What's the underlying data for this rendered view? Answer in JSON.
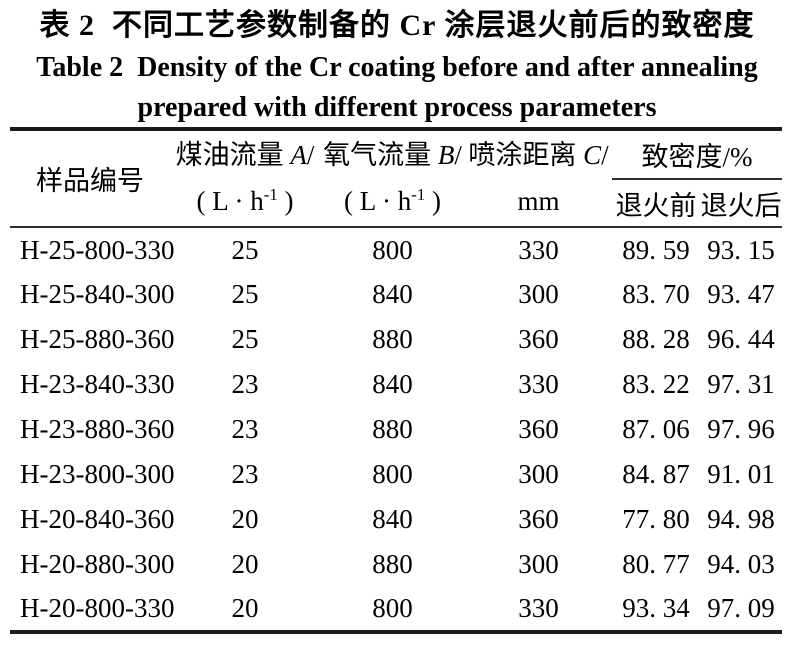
{
  "caption": {
    "zh": "表 2  不同工艺参数制备的 Cr 涂层退火前后的致密度",
    "en_line1": "Table 2  Density of the Cr coating before and after annealing",
    "en_line2": "prepared with different process parameters"
  },
  "table": {
    "header": {
      "sample_label": "样品编号",
      "kerosene": {
        "label": "煤油流量",
        "variable": "A",
        "slash": "/",
        "unit_pre": "( L · h",
        "unit_sup": "-1",
        "unit_post": " )"
      },
      "oxygen": {
        "label": "氧气流量",
        "variable": "B",
        "slash": "/",
        "unit_pre": "( L · h",
        "unit_sup": "-1",
        "unit_post": " )"
      },
      "distance": {
        "label": "喷涂距离",
        "variable": "C",
        "slash": "/",
        "unit": "mm"
      },
      "density_group_label": "致密度/%",
      "before_label": "退火前",
      "after_label": "退火后"
    },
    "rows": [
      {
        "sample": "H-25-800-330",
        "kerosene": "25",
        "oxygen": "800",
        "distance": "330",
        "before": "89. 59",
        "after": "93. 15"
      },
      {
        "sample": "H-25-840-300",
        "kerosene": "25",
        "oxygen": "840",
        "distance": "300",
        "before": "83. 70",
        "after": "93. 47"
      },
      {
        "sample": "H-25-880-360",
        "kerosene": "25",
        "oxygen": "880",
        "distance": "360",
        "before": "88. 28",
        "after": "96. 44"
      },
      {
        "sample": "H-23-840-330",
        "kerosene": "23",
        "oxygen": "840",
        "distance": "330",
        "before": "83. 22",
        "after": "97. 31"
      },
      {
        "sample": "H-23-880-360",
        "kerosene": "23",
        "oxygen": "880",
        "distance": "360",
        "before": "87. 06",
        "after": "97. 96"
      },
      {
        "sample": "H-23-800-300",
        "kerosene": "23",
        "oxygen": "800",
        "distance": "300",
        "before": "84. 87",
        "after": "91. 01"
      },
      {
        "sample": "H-20-840-360",
        "kerosene": "20",
        "oxygen": "840",
        "distance": "360",
        "before": "77. 80",
        "after": "94. 98"
      },
      {
        "sample": "H-20-880-300",
        "kerosene": "20",
        "oxygen": "880",
        "distance": "300",
        "before": "80. 77",
        "after": "94. 03"
      },
      {
        "sample": "H-20-800-330",
        "kerosene": "20",
        "oxygen": "800",
        "distance": "330",
        "before": "93. 34",
        "after": "97. 09"
      }
    ]
  },
  "colors": {
    "background": "#ffffff",
    "text": "#000000",
    "rule_heavy": "#1b1b1b",
    "rule_light": "#2c2c2c"
  }
}
